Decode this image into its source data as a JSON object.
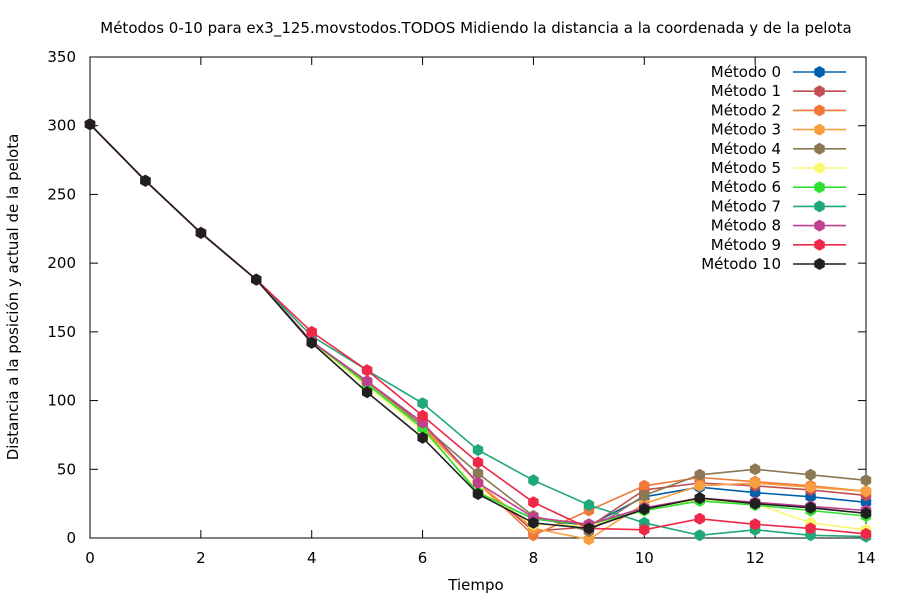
{
  "chart_data": {
    "type": "line",
    "title": "Métodos 0-10 para ex3_125.movstodos.TODOS Midiendo la distancia a la coordenada y de la pelota",
    "xlabel": "Tiempo",
    "ylabel": "Distancia a la posición y actual de la pelota",
    "xlim": [
      0,
      14
    ],
    "ylim": [
      0,
      350
    ],
    "xticks": [
      0,
      2,
      4,
      6,
      8,
      10,
      12,
      14
    ],
    "yticks": [
      0,
      50,
      100,
      150,
      200,
      250,
      300,
      350
    ],
    "grid": false,
    "legend_position": "top-right",
    "x": [
      0,
      1,
      2,
      3,
      4,
      5,
      6,
      7,
      8,
      9,
      10,
      11,
      12,
      13,
      14
    ],
    "series": [
      {
        "name": "Método 0",
        "color": "#0060ad",
        "values": [
          301,
          260,
          222,
          188,
          143,
          112,
          80,
          33,
          14,
          9,
          30,
          37,
          33,
          30,
          26
        ]
      },
      {
        "name": "Método 1",
        "color": "#c44e52",
        "values": [
          301,
          260,
          222,
          188,
          143,
          113,
          82,
          40,
          5,
          8,
          35,
          40,
          38,
          35,
          31
        ]
      },
      {
        "name": "Método 2",
        "color": "#f07838",
        "values": [
          301,
          260,
          222,
          188,
          143,
          113,
          82,
          40,
          2,
          20,
          38,
          44,
          41,
          38,
          34
        ]
      },
      {
        "name": "Método 3",
        "color": "#f8a040",
        "values": [
          301,
          260,
          222,
          188,
          143,
          113,
          80,
          40,
          7,
          -1,
          25,
          38,
          40,
          37,
          34
        ]
      },
      {
        "name": "Método 4",
        "color": "#8c7853",
        "values": [
          301,
          260,
          222,
          188,
          143,
          114,
          82,
          47,
          16,
          5,
          31,
          46,
          50,
          46,
          42
        ]
      },
      {
        "name": "Método 5",
        "color": "#f8f870",
        "values": [
          301,
          260,
          222,
          188,
          143,
          110,
          78,
          35,
          10,
          9,
          20,
          28,
          25,
          11,
          6
        ]
      },
      {
        "name": "Método 6",
        "color": "#30e030",
        "values": [
          301,
          260,
          222,
          188,
          143,
          112,
          80,
          33,
          14,
          10,
          20,
          27,
          24,
          20,
          16
        ]
      },
      {
        "name": "Método 7",
        "color": "#20a878",
        "values": [
          301,
          260,
          222,
          188,
          147,
          122,
          98,
          64,
          42,
          24,
          11,
          2,
          6,
          2,
          1
        ]
      },
      {
        "name": "Método 8",
        "color": "#c04090",
        "values": [
          301,
          260,
          222,
          188,
          143,
          114,
          84,
          40,
          15,
          10,
          22,
          29,
          26,
          23,
          20
        ]
      },
      {
        "name": "Método 9",
        "color": "#f02848",
        "values": [
          301,
          260,
          222,
          188,
          150,
          122,
          89,
          55,
          26,
          7,
          6,
          14,
          10,
          7,
          3
        ]
      },
      {
        "name": "Método 10",
        "color": "#202020",
        "values": [
          301,
          260,
          222,
          188,
          142,
          106,
          73,
          32,
          11,
          7,
          21,
          29,
          25,
          22,
          18
        ]
      }
    ]
  }
}
